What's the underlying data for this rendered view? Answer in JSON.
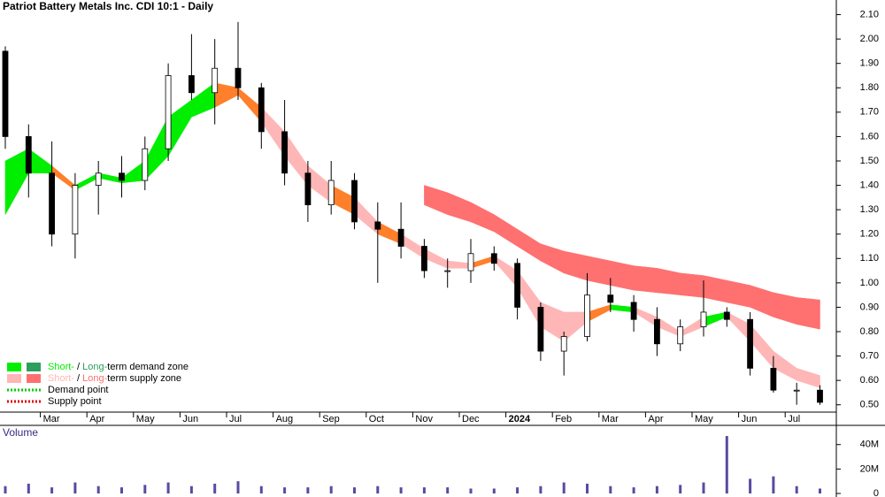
{
  "chart_data": {
    "type": "candlestick",
    "title": "Patriot Battery Metals Inc. CDI 10:1 - Daily",
    "categories": [
      null,
      null,
      "Mar",
      null,
      "Apr",
      null,
      "May",
      null,
      "Jun",
      null,
      "Jul",
      null,
      "Aug",
      null,
      "Sep",
      null,
      "Oct",
      null,
      "Nov",
      null,
      "Dec",
      null,
      "2024",
      null,
      "Feb",
      null,
      "Mar",
      null,
      "Apr",
      null,
      "May",
      null,
      "Jun",
      null,
      "Jul",
      null
    ],
    "open": [
      1.95,
      1.6,
      1.45,
      1.2,
      1.4,
      1.45,
      1.42,
      1.55,
      1.85,
      1.78,
      1.88,
      1.8,
      1.62,
      1.45,
      1.32,
      1.42,
      1.25,
      1.22,
      1.15,
      1.05,
      1.05,
      1.12,
      1.08,
      0.9,
      0.72,
      0.78,
      0.95,
      0.92,
      0.85,
      0.75,
      0.82,
      0.88,
      0.85,
      0.65,
      0.56,
      0.56
    ],
    "high": [
      1.97,
      1.65,
      1.58,
      1.45,
      1.5,
      1.52,
      1.6,
      1.9,
      2.02,
      2.0,
      2.07,
      1.82,
      1.75,
      1.5,
      1.5,
      1.45,
      1.33,
      1.33,
      1.18,
      1.1,
      1.18,
      1.15,
      1.1,
      0.92,
      0.8,
      1.04,
      1.02,
      0.95,
      0.9,
      0.85,
      1.01,
      0.9,
      0.88,
      0.7,
      0.59,
      0.58
    ],
    "low": [
      1.55,
      1.35,
      1.15,
      1.1,
      1.28,
      1.35,
      1.38,
      1.5,
      1.75,
      1.65,
      1.75,
      1.55,
      1.4,
      1.25,
      1.28,
      1.22,
      1.0,
      1.1,
      1.02,
      0.98,
      1.0,
      1.05,
      0.85,
      0.68,
      0.62,
      0.76,
      0.88,
      0.8,
      0.7,
      0.72,
      0.78,
      0.82,
      0.62,
      0.55,
      0.5,
      0.5
    ],
    "close": [
      1.6,
      1.45,
      1.2,
      1.4,
      1.45,
      1.42,
      1.55,
      1.85,
      1.78,
      1.88,
      1.8,
      1.62,
      1.45,
      1.32,
      1.42,
      1.25,
      1.22,
      1.15,
      1.05,
      1.05,
      1.12,
      1.08,
      0.9,
      0.72,
      0.78,
      0.95,
      0.92,
      0.85,
      0.75,
      0.82,
      0.88,
      0.85,
      0.65,
      0.56,
      0.56,
      0.51
    ],
    "short_zone": {
      "upper": [
        1.5,
        1.55,
        1.48,
        1.4,
        1.45,
        1.43,
        1.5,
        1.68,
        1.75,
        1.82,
        1.8,
        1.72,
        1.62,
        1.48,
        1.4,
        1.35,
        1.25,
        1.2,
        1.14,
        1.09,
        1.08,
        1.11,
        1.05,
        0.92,
        0.88,
        0.88,
        0.91,
        0.9,
        0.86,
        0.8,
        0.86,
        0.88,
        0.83,
        0.72,
        0.65,
        0.62
      ],
      "lower": [
        1.28,
        1.45,
        1.45,
        1.38,
        1.43,
        1.41,
        1.42,
        1.52,
        1.68,
        1.72,
        1.77,
        1.66,
        1.52,
        1.4,
        1.33,
        1.28,
        1.2,
        1.16,
        1.1,
        1.06,
        1.06,
        1.09,
        0.98,
        0.82,
        0.76,
        0.84,
        0.89,
        0.88,
        0.82,
        0.78,
        0.82,
        0.86,
        0.76,
        0.65,
        0.6,
        0.57
      ],
      "colors": [
        "#00ee00",
        "#00ee00",
        "#ff7f2a",
        "#00ee00",
        "#00ee00",
        "#00ee00",
        "#00ee00",
        "#00ee00",
        "#00ee00",
        "#ff7f2a",
        "#ff7f2a",
        "#ffb6b6",
        "#ffb6b6",
        "#ffb6b6",
        "#ff7f2a",
        "#ffb6b6",
        "#ff7f2a",
        "#ffb6b6",
        "#ffb6b6",
        "#ffb6b6",
        "#ff7f2a",
        "#ffb6b6",
        "#ffb6b6",
        "#ffb6b6",
        "#ffb6b6",
        "#ff7f2a",
        "#00ee00",
        "#ffb6b6",
        "#ffb6b6",
        "#ffb6b6",
        "#00ee00",
        "#ffb6b6",
        "#ffb6b6",
        "#ffb6b6",
        "#ffb6b6",
        "#ffb6b6"
      ]
    },
    "long_zone": {
      "color": "#ff7070",
      "upper": [
        null,
        null,
        null,
        null,
        null,
        null,
        null,
        null,
        null,
        null,
        null,
        null,
        null,
        null,
        null,
        null,
        null,
        null,
        1.4,
        1.37,
        1.33,
        1.28,
        1.22,
        1.16,
        1.13,
        1.11,
        1.09,
        1.07,
        1.06,
        1.04,
        1.03,
        1.01,
        0.99,
        0.96,
        0.94,
        0.93
      ],
      "lower": [
        null,
        null,
        null,
        null,
        null,
        null,
        null,
        null,
        null,
        null,
        null,
        null,
        null,
        null,
        null,
        null,
        null,
        null,
        1.32,
        1.28,
        1.25,
        1.21,
        1.15,
        1.09,
        1.04,
        1.01,
        0.99,
        0.97,
        0.96,
        0.95,
        0.94,
        0.92,
        0.9,
        0.86,
        0.83,
        0.81
      ]
    },
    "ylim": [
      0.47,
      2.16
    ],
    "yticks": [
      {
        "value": 0.5,
        "label": "0.50"
      },
      {
        "value": 0.6,
        "label": "0.60"
      },
      {
        "value": 0.7,
        "label": "0.70"
      },
      {
        "value": 0.8,
        "label": "0.80"
      },
      {
        "value": 0.9,
        "label": "0.90"
      },
      {
        "value": 1.0,
        "label": "1.00"
      },
      {
        "value": 1.1,
        "label": "1.10"
      },
      {
        "value": 1.2,
        "label": "1.20"
      },
      {
        "value": 1.3,
        "label": "1.30"
      },
      {
        "value": 1.4,
        "label": "1.40"
      },
      {
        "value": 1.5,
        "label": "1.50"
      },
      {
        "value": 1.6,
        "label": "1.60"
      },
      {
        "value": 1.7,
        "label": "1.70"
      },
      {
        "value": 1.8,
        "label": "1.80"
      },
      {
        "value": 1.9,
        "label": "1.90"
      },
      {
        "value": 2.0,
        "label": "2.00"
      },
      {
        "value": 2.1,
        "label": "2.10"
      }
    ],
    "legend": [
      {
        "short": "Short-",
        "sep": " / ",
        "long": "Long-",
        "text": "term demand zone",
        "short_color": "#00ee00",
        "long_color": "#2e9e5e",
        "text_color": "#00aa00"
      },
      {
        "short": "Short-",
        "sep": " / ",
        "long": "Long-",
        "text": "term supply zone",
        "short_color": "#ffb6b6",
        "long_color": "#ff7070",
        "text_color": "#e00000"
      },
      {
        "text": "Demand point",
        "color": "#00cc00"
      },
      {
        "text": "Supply point",
        "color": "#dd0000"
      }
    ],
    "volume": {
      "title": "Volume",
      "color": "#5a4aa0",
      "values": [
        6000000,
        8000000,
        5000000,
        9000000,
        6000000,
        5000000,
        7000000,
        9000000,
        6000000,
        8000000,
        10000000,
        6000000,
        5000000,
        5000000,
        6000000,
        5000000,
        6000000,
        5000000,
        5000000,
        5000000,
        4000000,
        4000000,
        5000000,
        6000000,
        9000000,
        8000000,
        6000000,
        5000000,
        6000000,
        7000000,
        9000000,
        47000000,
        12000000,
        14000000,
        6000000,
        4000000
      ],
      "ylim": [
        0,
        55000000
      ],
      "yticks": [
        0,
        {
          "value": 20000000,
          "label": "20M"
        },
        {
          "value": 40000000,
          "label": "40M"
        }
      ]
    }
  }
}
